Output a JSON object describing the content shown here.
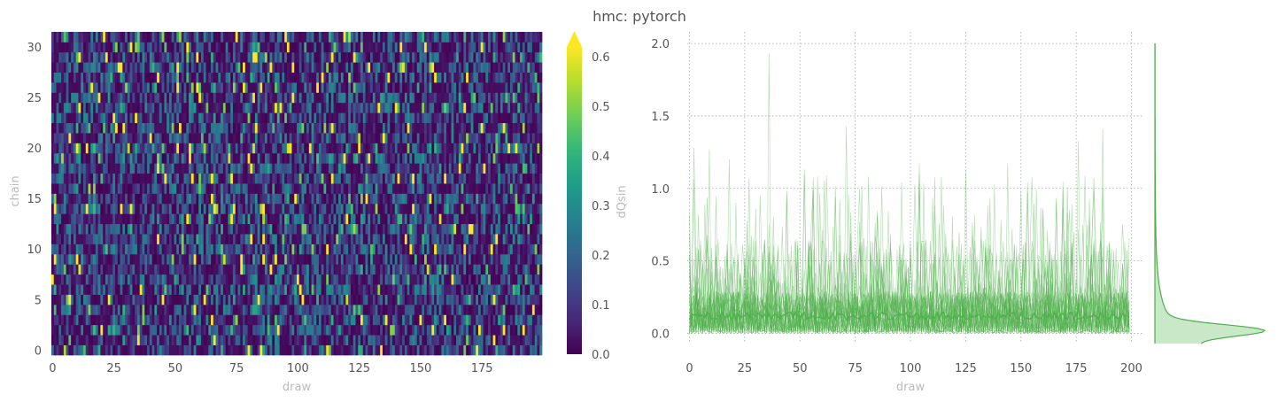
{
  "title": "hmc: pytorch",
  "colors": {
    "line": "#4daf4a",
    "kde_fill": "#c9e8c8",
    "grid": "#aaaaaa",
    "viridis": [
      "#440154",
      "#482878",
      "#3e4989",
      "#31688e",
      "#26828e",
      "#1f9e89",
      "#35b779",
      "#6ece58",
      "#b5de2b",
      "#fde725"
    ]
  },
  "chart_data": [
    {
      "type": "heatmap",
      "xlabel": "draw",
      "ylabel": "chain",
      "x_ticks": [
        0,
        25,
        50,
        75,
        100,
        125,
        150,
        175
      ],
      "y_ticks": [
        0,
        5,
        10,
        15,
        20,
        25,
        30
      ],
      "n_draws": 200,
      "n_chains": 32,
      "colormap": "viridis",
      "colorbar": {
        "label": "dQsin",
        "range": [
          0,
          0.62
        ],
        "ticks": [
          0.0,
          0.1,
          0.2,
          0.3,
          0.4,
          0.5,
          0.6
        ],
        "extend": "max"
      }
    },
    {
      "type": "line",
      "xlabel": "draw",
      "ylabel": "",
      "xlim": [
        -5,
        205
      ],
      "ylim": [
        -0.15,
        2.08
      ],
      "x_ticks": [
        0,
        25,
        50,
        75,
        100,
        125,
        150,
        175,
        200
      ],
      "y_ticks": [
        0.0,
        0.5,
        1.0,
        1.5,
        2.0
      ],
      "n_chains": 32,
      "grid": true,
      "mean_level": 0.12,
      "peaks": [
        {
          "x": 36,
          "y": 1.93
        },
        {
          "x": 71,
          "y": 1.43
        },
        {
          "x": 187,
          "y": 1.41
        },
        {
          "x": 176,
          "y": 1.33
        },
        {
          "x": 2,
          "y": 1.28
        },
        {
          "x": 9,
          "y": 1.27
        },
        {
          "x": 18,
          "y": 1.2
        },
        {
          "x": 104,
          "y": 1.17
        },
        {
          "x": 52,
          "y": 1.13
        },
        {
          "x": 144,
          "y": 1.17
        },
        {
          "x": 125,
          "y": 1.12
        }
      ],
      "marginal_kde": {
        "mode": 0.0,
        "max": 2.0
      }
    }
  ]
}
